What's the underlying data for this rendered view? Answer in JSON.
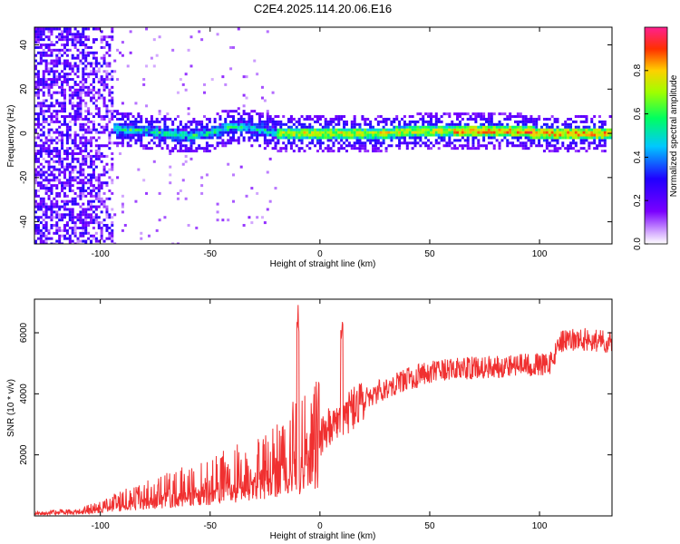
{
  "title": "C2E4.2025.114.20.06.E16",
  "chart_data": [
    {
      "type": "heatmap",
      "xlabel": "Height of straight line (km)",
      "ylabel": "Frequency (Hz)",
      "xlim": [
        -130,
        133
      ],
      "ylim": [
        -50,
        48
      ],
      "xticks": [
        -100,
        -50,
        0,
        50,
        100
      ],
      "yticks": [
        -40,
        -20,
        0,
        20,
        40
      ],
      "colorbar": {
        "label": "Normalized spectral amplitude",
        "range": [
          0.0,
          1.0
        ],
        "ticks": [
          0.0,
          0.2,
          0.4,
          0.6,
          0.8
        ],
        "colormap": "rainbow (purple-blue-cyan-green-yellow-red)"
      },
      "ridge": {
        "x": [
          -110,
          -100,
          -90,
          -80,
          -70,
          -60,
          -50,
          -45,
          -40,
          -35,
          -30,
          -25,
          -20,
          -15,
          -10,
          0,
          10,
          20,
          30,
          40,
          50,
          60,
          70,
          80,
          90,
          100,
          110,
          120,
          133
        ],
        "frequency": [
          2,
          3,
          2,
          1,
          0,
          -1,
          0,
          2,
          3,
          3,
          2,
          1,
          0,
          0,
          0,
          0,
          0,
          0,
          0,
          1,
          1,
          1,
          1,
          1,
          1,
          0,
          0,
          0,
          0
        ]
      }
    },
    {
      "type": "line",
      "xlabel": "Height of straight line (km)",
      "ylabel": "SNR (10 * v/v)",
      "xlim": [
        -130,
        133
      ],
      "ylim": [
        0,
        7100
      ],
      "xticks": [
        -100,
        -50,
        0,
        50,
        100
      ],
      "yticks": [
        2000,
        4000,
        6000
      ],
      "color": "#f03030",
      "envelope": {
        "x": [
          -130,
          -110,
          -100,
          -90,
          -80,
          -70,
          -60,
          -50,
          -40,
          -30,
          -20,
          -15,
          -10,
          -5,
          0,
          5,
          10,
          15,
          20,
          30,
          40,
          50,
          60,
          70,
          80,
          90,
          100,
          105,
          110,
          120,
          133
        ],
        "y": [
          100,
          150,
          300,
          500,
          650,
          850,
          1000,
          1150,
          1350,
          1600,
          1900,
          2100,
          2300,
          2500,
          2650,
          2900,
          3200,
          3500,
          3800,
          4200,
          4500,
          4700,
          4800,
          4850,
          4900,
          4950,
          4950,
          5000,
          5700,
          5800,
          5700
        ]
      },
      "spikes": [
        {
          "x": -10,
          "y": 7100
        },
        {
          "x": 10,
          "y": 6500
        }
      ]
    }
  ]
}
